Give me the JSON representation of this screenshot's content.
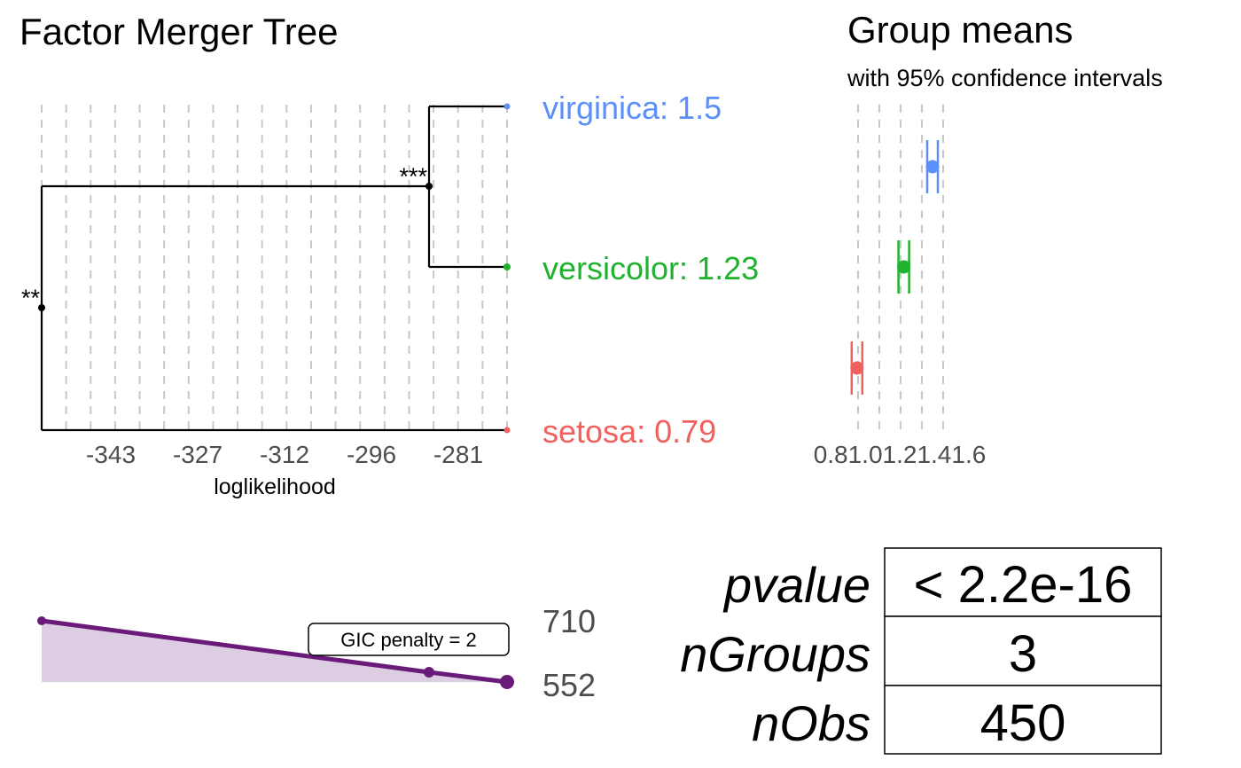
{
  "merger_tree": {
    "title": "Factor Merger Tree",
    "xlabel": "loglikelihood",
    "x_ticks": [
      "-343",
      "-327",
      "-312",
      "-296",
      "-281"
    ],
    "leaves": [
      {
        "label": "virginica: 1.5",
        "color": "#5b8ff9"
      },
      {
        "label": "versicolor: 1.23",
        "color": "#1fb32d"
      },
      {
        "label": "setosa: 0.79",
        "color": "#f0605d"
      }
    ],
    "significance": [
      "***",
      "**"
    ]
  },
  "group_means": {
    "title": "Group means",
    "subtitle": "with 95% confidence intervals",
    "tick_label_overlap": "0.81.01.21.41.6"
  },
  "gic": {
    "label": "GIC penalty = 2",
    "values": [
      "710",
      "552"
    ],
    "color": "#6a1b7a",
    "fill": "#dccde2"
  },
  "stats_table": [
    {
      "key": "pvalue",
      "value": "< 2.2e-16"
    },
    {
      "key": "nGroups",
      "value": "3"
    },
    {
      "key": "nObs",
      "value": "450"
    }
  ],
  "chart_data": [
    {
      "type": "line",
      "title": "Factor Merger Tree",
      "xlabel": "loglikelihood",
      "x_ticks": [
        -343,
        -327,
        -312,
        -296,
        -281
      ],
      "xlim": [
        -350,
        -268
      ],
      "merges": [
        {
          "groups": [
            "virginica",
            "versicolor"
          ],
          "loglikelihood": -286,
          "significance": "***"
        },
        {
          "groups": [
            "virginica+versicolor",
            "setosa"
          ],
          "loglikelihood": -350,
          "significance": "**"
        }
      ],
      "leaves": [
        {
          "name": "virginica",
          "mean": 1.5,
          "loglikelihood": -268
        },
        {
          "name": "versicolor",
          "mean": 1.23,
          "loglikelihood": -268
        },
        {
          "name": "setosa",
          "mean": 0.79,
          "loglikelihood": -268
        }
      ]
    },
    {
      "type": "scatter",
      "title": "Group means",
      "subtitle": "with 95% confidence intervals",
      "x_ticks": [
        0.8,
        1.0,
        1.2,
        1.4,
        1.6
      ],
      "xlim": [
        0.8,
        1.6
      ],
      "points": [
        {
          "group": "virginica",
          "mean": 1.5,
          "ci": [
            1.45,
            1.55
          ]
        },
        {
          "group": "versicolor",
          "mean": 1.23,
          "ci": [
            1.18,
            1.28
          ]
        },
        {
          "group": "setosa",
          "mean": 0.79,
          "ci": [
            0.74,
            0.84
          ]
        }
      ]
    },
    {
      "type": "area",
      "annotation": "GIC penalty = 2",
      "x": [
        -350,
        -286,
        -268
      ],
      "values": [
        710,
        580,
        552
      ],
      "ylim": [
        552,
        710
      ]
    }
  ]
}
